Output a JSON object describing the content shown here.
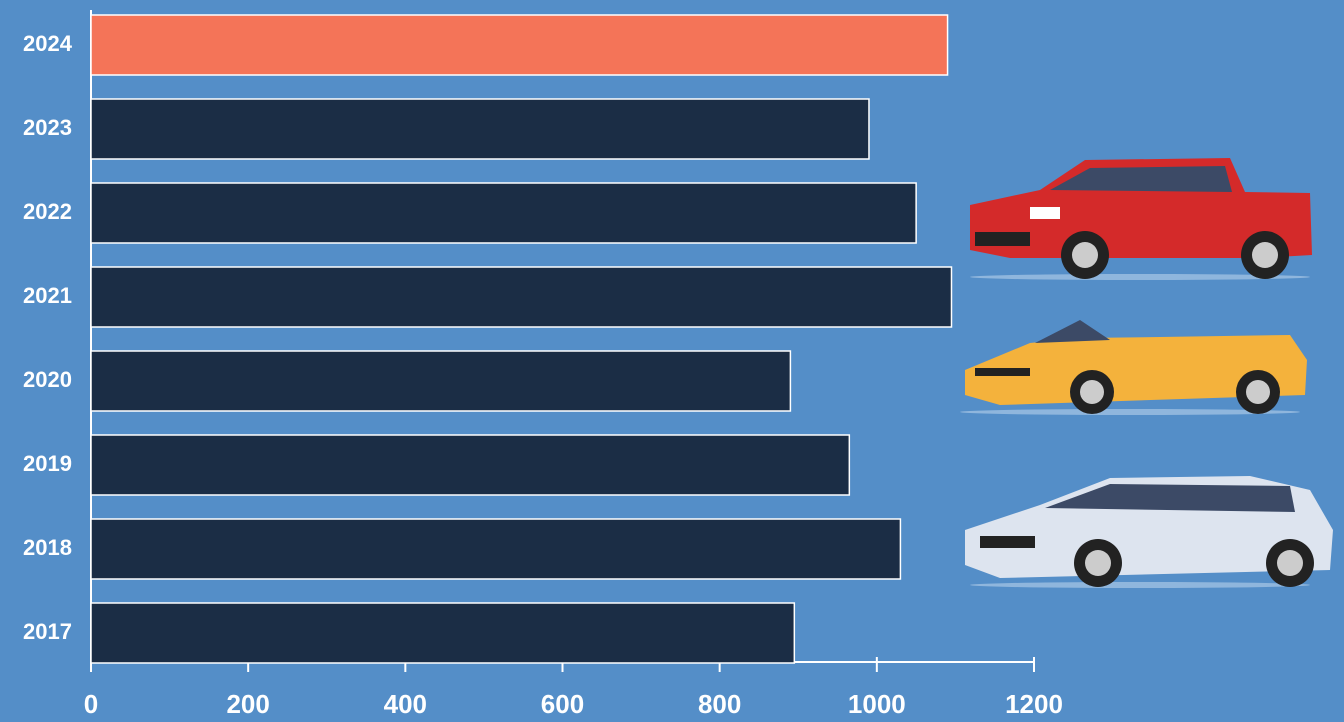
{
  "chart_data": {
    "type": "barh",
    "categories": [
      "2024",
      "2023",
      "2022",
      "2021",
      "2020",
      "2019",
      "2018",
      "2017"
    ],
    "values": [
      1090,
      990,
      1050,
      1095,
      890,
      965,
      1030,
      895
    ],
    "colors": [
      "#f47458",
      "#1b2d45",
      "#1b2d45",
      "#1b2d45",
      "#1b2d45",
      "#1b2d45",
      "#1b2d45",
      "#1b2d45"
    ],
    "xlim": [
      0,
      1200
    ],
    "xticks": [
      0,
      200,
      400,
      600,
      800,
      1000,
      1200
    ]
  }
}
